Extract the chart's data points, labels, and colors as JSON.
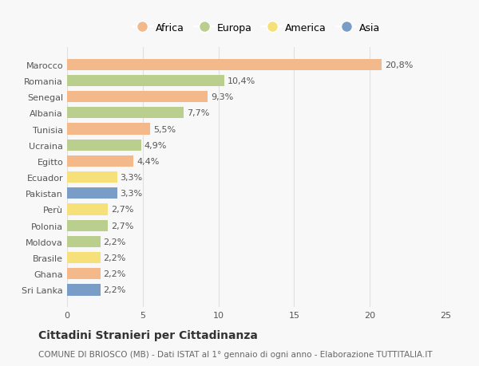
{
  "countries": [
    "Marocco",
    "Romania",
    "Senegal",
    "Albania",
    "Tunisia",
    "Ucraina",
    "Egitto",
    "Ecuador",
    "Pakistan",
    "Perù",
    "Polonia",
    "Moldova",
    "Brasile",
    "Ghana",
    "Sri Lanka"
  ],
  "values": [
    20.8,
    10.4,
    9.3,
    7.7,
    5.5,
    4.9,
    4.4,
    3.3,
    3.3,
    2.7,
    2.7,
    2.2,
    2.2,
    2.2,
    2.2
  ],
  "labels": [
    "20,8%",
    "10,4%",
    "9,3%",
    "7,7%",
    "5,5%",
    "4,9%",
    "4,4%",
    "3,3%",
    "3,3%",
    "2,7%",
    "2,7%",
    "2,2%",
    "2,2%",
    "2,2%",
    "2,2%"
  ],
  "continents": [
    "Africa",
    "Europa",
    "Africa",
    "Europa",
    "Africa",
    "Europa",
    "Africa",
    "America",
    "Asia",
    "America",
    "Europa",
    "Europa",
    "America",
    "Africa",
    "Asia"
  ],
  "colors": {
    "Africa": "#F4B98A",
    "Europa": "#BACF8E",
    "America": "#F5E07A",
    "Asia": "#7A9DC8"
  },
  "legend_labels": [
    "Africa",
    "Europa",
    "America",
    "Asia"
  ],
  "legend_colors": [
    "#F4B98A",
    "#BACF8E",
    "#F5E07A",
    "#7A9DC8"
  ],
  "title": "Cittadini Stranieri per Cittadinanza",
  "subtitle": "COMUNE DI BRIOSCO (MB) - Dati ISTAT al 1° gennaio di ogni anno - Elaborazione TUTTITALIA.IT",
  "xlim": [
    0,
    25
  ],
  "xticks": [
    0,
    5,
    10,
    15,
    20,
    25
  ],
  "bg_color": "#f8f8f8",
  "grid_color": "#e0e0e0",
  "title_fontsize": 10,
  "subtitle_fontsize": 7.5,
  "tick_fontsize": 8,
  "label_fontsize": 8,
  "legend_fontsize": 9
}
